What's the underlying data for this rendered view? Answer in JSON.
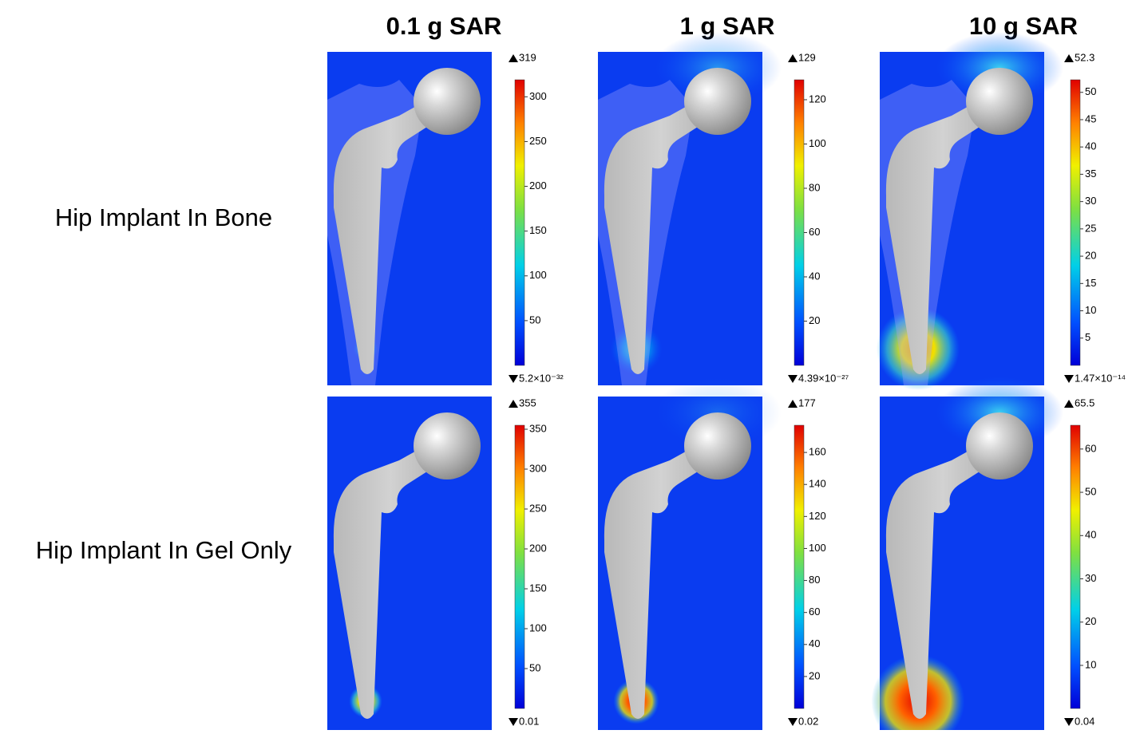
{
  "columns": [
    "0.1 g SAR",
    "1 g SAR",
    "10 g SAR"
  ],
  "rows": [
    "Hip Implant In Bone",
    "Hip Implant In Gel Only"
  ],
  "panels": [
    {
      "max": 319,
      "min": {
        "value": 5.2e-32,
        "label": "5.2×10⁻³²"
      },
      "ticks": [
        50,
        100,
        150,
        200,
        250,
        300
      ]
    },
    {
      "max": 129,
      "min": {
        "value": 4.39e-27,
        "label": "4.39×10⁻²⁷"
      },
      "ticks": [
        20,
        40,
        60,
        80,
        100,
        120
      ]
    },
    {
      "max": 52.3,
      "min": {
        "value": 1.47e-14,
        "label": "1.47×10⁻¹⁴"
      },
      "ticks": [
        5,
        10,
        15,
        20,
        25,
        30,
        35,
        40,
        45,
        50
      ]
    },
    {
      "max": 355,
      "min": 0.01,
      "ticks": [
        50,
        100,
        150,
        200,
        250,
        300,
        350
      ]
    },
    {
      "max": 177,
      "min": 0.02,
      "ticks": [
        20,
        40,
        60,
        80,
        100,
        120,
        140,
        160
      ]
    },
    {
      "max": 65.5,
      "min": 0.04,
      "ticks": [
        10,
        20,
        30,
        40,
        50,
        60
      ]
    }
  ]
}
